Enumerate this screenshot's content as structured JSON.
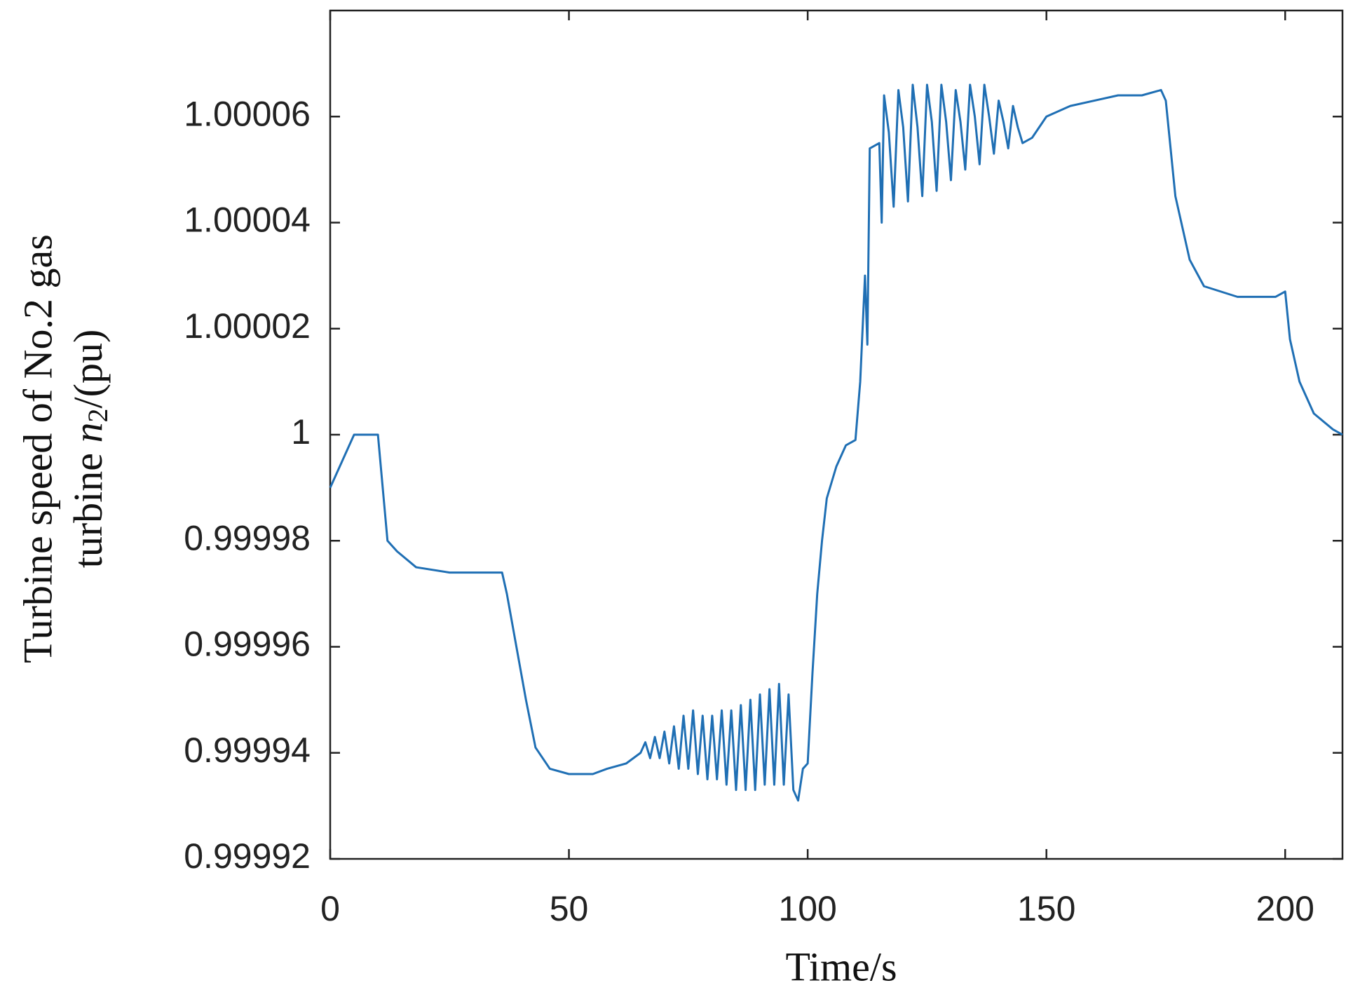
{
  "chart_data": {
    "type": "line",
    "xlabel": "Time/s",
    "ylabel": {
      "line1": "Turbine speed of No.2 gas",
      "line2": [
        "turbine ",
        "n",
        "2",
        "/(pu)"
      ]
    },
    "xlim": [
      0,
      212
    ],
    "xticks": [
      0,
      50,
      100,
      150,
      200
    ],
    "ylim": [
      0.99992,
      1.00008
    ],
    "yticks": [
      0.99992,
      0.99994,
      0.99996,
      0.99998,
      1,
      1.00002,
      1.00004,
      1.00006
    ],
    "x": [
      0,
      5,
      10,
      11,
      12,
      14,
      18,
      25,
      36,
      37,
      39,
      41,
      43,
      46,
      50,
      55,
      58,
      62,
      65,
      66,
      67,
      68,
      69,
      70,
      71,
      72,
      73,
      74,
      75,
      76,
      77,
      78,
      79,
      80,
      81,
      82,
      83,
      84,
      85,
      86,
      87,
      88,
      89,
      90,
      91,
      92,
      93,
      94,
      95,
      96,
      97,
      98,
      99,
      100,
      101,
      102,
      103,
      104,
      106,
      108,
      110,
      111,
      112,
      112.5,
      113,
      115,
      115.5,
      116,
      117,
      118,
      119,
      120,
      121,
      122,
      123,
      124,
      125,
      126,
      127,
      128,
      129,
      130,
      131,
      132,
      133,
      134,
      135,
      136,
      137,
      138,
      139,
      140,
      141,
      142,
      143,
      144,
      145,
      147,
      150,
      155,
      160,
      165,
      170,
      174,
      175,
      177,
      180,
      183,
      190,
      198,
      200,
      201,
      203,
      206,
      210,
      212
    ],
    "series": [
      {
        "color": "#1f6fb4",
        "values": [
          0.99999,
          1.0,
          1.0,
          0.99999,
          0.99998,
          0.999978,
          0.999975,
          0.999974,
          0.999974,
          0.99997,
          0.99996,
          0.99995,
          0.999941,
          0.999937,
          0.999936,
          0.999936,
          0.999937,
          0.999938,
          0.99994,
          0.999942,
          0.999939,
          0.999943,
          0.999939,
          0.999944,
          0.999938,
          0.999945,
          0.999937,
          0.999947,
          0.999937,
          0.999948,
          0.999936,
          0.999947,
          0.999935,
          0.999947,
          0.999935,
          0.999948,
          0.999934,
          0.999948,
          0.999933,
          0.999949,
          0.999933,
          0.99995,
          0.999933,
          0.999951,
          0.999934,
          0.999952,
          0.999934,
          0.999953,
          0.999934,
          0.999951,
          0.999933,
          0.999931,
          0.999937,
          0.999938,
          0.999955,
          0.99997,
          0.99998,
          0.999988,
          0.999994,
          0.999998,
          0.999999,
          1.00001,
          1.00003,
          1.000017,
          1.000054,
          1.000055,
          1.00004,
          1.000064,
          1.000057,
          1.000043,
          1.000065,
          1.000058,
          1.000044,
          1.000066,
          1.000058,
          1.000045,
          1.000066,
          1.000059,
          1.000046,
          1.000066,
          1.000059,
          1.000048,
          1.000065,
          1.000059,
          1.00005,
          1.000066,
          1.00006,
          1.000051,
          1.000066,
          1.00006,
          1.000053,
          1.000063,
          1.000059,
          1.000054,
          1.000062,
          1.000058,
          1.000055,
          1.000056,
          1.00006,
          1.000062,
          1.000063,
          1.000064,
          1.000064,
          1.000065,
          1.000063,
          1.000045,
          1.000033,
          1.000028,
          1.000026,
          1.000026,
          1.000027,
          1.000018,
          1.00001,
          1.000004,
          1.000001,
          1.0
        ]
      }
    ]
  }
}
